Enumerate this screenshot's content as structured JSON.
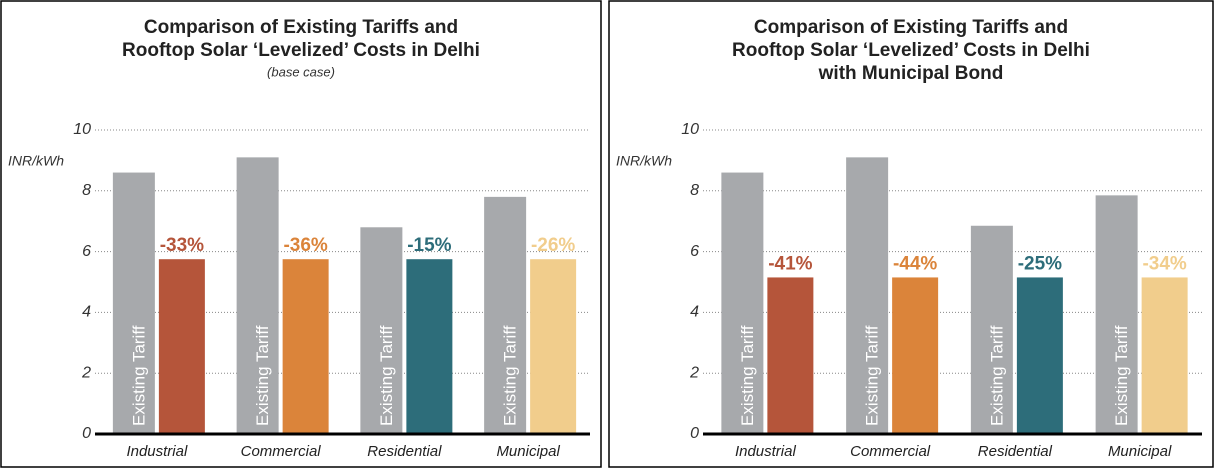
{
  "chart_data": [
    {
      "type": "bar",
      "title": [
        "Comparison of Existing Tariffs and",
        "Rooftop Solar ‘Levelized’ Costs in Delhi"
      ],
      "subtitle": "(base case)",
      "y_label": "INR/kWh",
      "categories": [
        "Industrial",
        "Commercial",
        "Residential",
        "Municipal"
      ],
      "series": [
        {
          "name": "Existing Tariff",
          "color": "#a7a9ac",
          "values": [
            8.6,
            9.1,
            6.8,
            7.8
          ]
        },
        {
          "colors": [
            "#b5553a",
            "#db843a",
            "#2d6d7a",
            "#f1cd8c"
          ],
          "values": [
            5.75,
            5.75,
            5.75,
            5.75
          ]
        }
      ],
      "annotations": [
        "-33%",
        "-36%",
        "-15%",
        "-26%"
      ],
      "ylim": [
        0,
        10
      ],
      "yticks": [
        0,
        2,
        4,
        6,
        8,
        10
      ],
      "grid": true
    },
    {
      "type": "bar",
      "title": [
        "Comparison of Existing Tariffs and",
        "Rooftop Solar ‘Levelized’ Costs in Delhi",
        "with Municipal Bond"
      ],
      "y_label": "INR/kWh",
      "categories": [
        "Industrial",
        "Commercial",
        "Residential",
        "Municipal"
      ],
      "series": [
        {
          "name": "Existing Tariff",
          "color": "#a7a9ac",
          "values": [
            8.6,
            9.1,
            6.85,
            7.85
          ]
        },
        {
          "colors": [
            "#b5553a",
            "#db843a",
            "#2d6d7a",
            "#f1cd8c"
          ],
          "values": [
            5.15,
            5.15,
            5.15,
            5.15
          ]
        }
      ],
      "annotations": [
        "-41%",
        "-44%",
        "-25%",
        "-34%"
      ],
      "ylim": [
        0,
        10
      ],
      "yticks": [
        0,
        2,
        4,
        6,
        8,
        10
      ],
      "grid": true
    }
  ]
}
